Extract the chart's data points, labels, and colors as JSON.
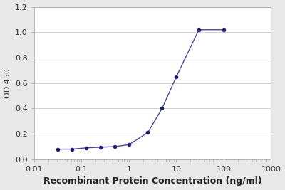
{
  "x": [
    0.031,
    0.062,
    0.125,
    0.25,
    0.5,
    1.0,
    2.5,
    5.0,
    10.0,
    30.0,
    100.0
  ],
  "y": [
    0.08,
    0.08,
    0.09,
    0.095,
    0.1,
    0.115,
    0.21,
    0.4,
    0.65,
    1.02,
    1.02
  ],
  "xlabel": "Recombinant Protein Concentration (ng/ml)",
  "ylabel": "OD 450",
  "xlim": [
    0.01,
    1000
  ],
  "ylim": [
    0,
    1.2
  ],
  "yticks": [
    0,
    0.2,
    0.4,
    0.6,
    0.8,
    1.0,
    1.2
  ],
  "xticks": [
    0.01,
    0.1,
    1,
    10,
    100,
    1000
  ],
  "xtick_labels": [
    "0.01",
    "0.1",
    "1",
    "10",
    "100",
    "1000"
  ],
  "line_color": "#4a4a9a",
  "marker_color": "#1a1a6e",
  "bg_color": "#e8e8e8",
  "plot_bg_color": "#ffffff",
  "grid_color": "#d0d0d0",
  "xlabel_fontsize": 9,
  "ylabel_fontsize": 8,
  "tick_fontsize": 8
}
